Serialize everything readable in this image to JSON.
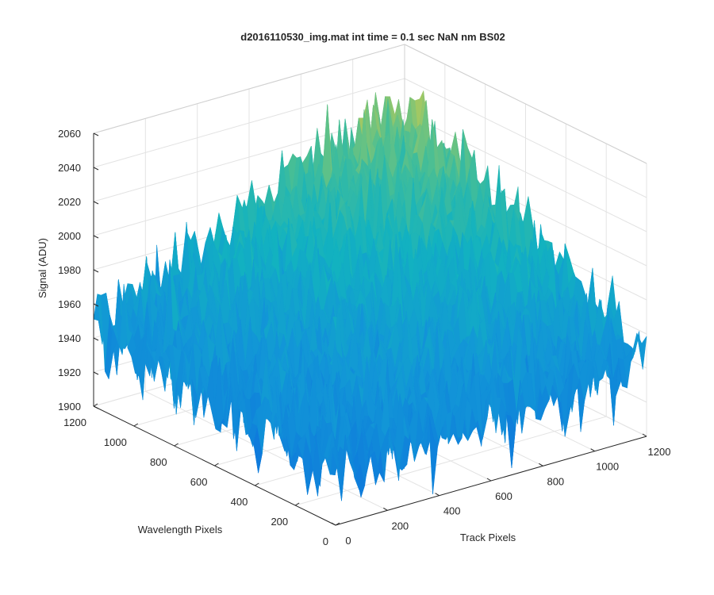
{
  "chart_data": {
    "type": "surface",
    "title": "d2016110530_img.mat int time = 0.1 sec  NaN nm BS02",
    "xlabel": "Track Pixels",
    "ylabel": "Wavelength Pixels",
    "zlabel": "Signal (ADU)",
    "xlim": [
      0,
      1200
    ],
    "ylim": [
      0,
      1200
    ],
    "zlim": [
      1900,
      2060
    ],
    "x_ticks": [
      "0",
      "200",
      "400",
      "600",
      "800",
      "1000",
      "1200"
    ],
    "y_ticks": [
      "0",
      "200",
      "400",
      "600",
      "800",
      "1000",
      "1200"
    ],
    "z_ticks": [
      "1900",
      "1920",
      "1940",
      "1960",
      "1980",
      "2000",
      "2020",
      "2040",
      "2060"
    ],
    "grid": true,
    "colormap": "parula",
    "surface_summary": {
      "z_at_corner_x0_y0": 1935,
      "z_at_corner_x1200_y0": 1945,
      "z_at_corner_x0_y1200": 1945,
      "z_at_corner_x1200_y1200": 2025,
      "noise_amplitude": 15
    }
  }
}
